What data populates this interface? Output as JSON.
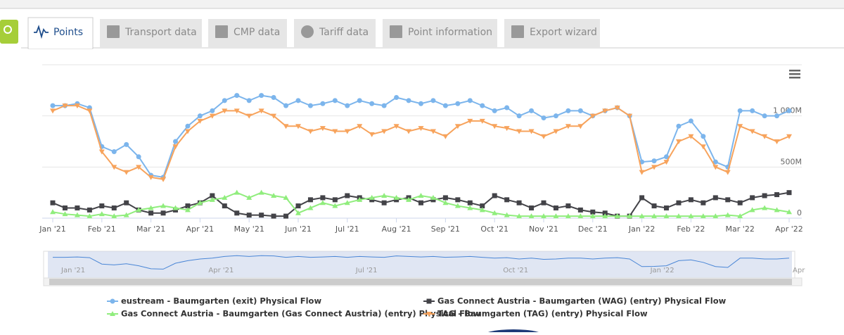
{
  "tabs": [
    "Points",
    "Transport data",
    "CMP data",
    "Tariff data",
    "Point information",
    "Export wizard"
  ],
  "navigator_labels": [
    "Jan '21",
    "Apr '21",
    "Jul '21",
    "Oct '21",
    "Jan '22",
    "Apr"
  ],
  "chart_data": {
    "type": "line",
    "categories": [
      "Jan '21",
      null,
      null,
      null,
      "Feb '21",
      null,
      null,
      null,
      "Mar '21",
      null,
      null,
      null,
      "Apr '21",
      null,
      null,
      null,
      "May '21",
      null,
      null,
      null,
      "Jun '21",
      null,
      null,
      null,
      "Jul '21",
      null,
      null,
      null,
      "Aug '21",
      null,
      null,
      null,
      "Sep '21",
      null,
      null,
      null,
      "Oct '21",
      null,
      null,
      null,
      "Nov '21",
      null,
      null,
      null,
      "Dec '21",
      null,
      null,
      null,
      "Jan '22",
      null,
      null,
      null,
      "Feb '22",
      null,
      null,
      null,
      "Mar '22",
      null,
      null,
      null,
      "Apr '22"
    ],
    "ylim": [
      0,
      1500000000.0
    ],
    "yticks": [
      0,
      {
        "value": 500000000.0,
        "label": "500M"
      },
      {
        "value": 1000000000.0,
        "label": "1 000M"
      }
    ],
    "grid": true,
    "legend": "bottom",
    "series": [
      {
        "name": "eustream - Baumgarten (exit) Physical Flow",
        "color": "#7cb5ec",
        "values": [
          1100000000.0,
          1100000000.0,
          1120000000.0,
          1080000000.0,
          700000000.0,
          650000000.0,
          720000000.0,
          600000000.0,
          420000000.0,
          400000000.0,
          750000000.0,
          900000000.0,
          1000000000.0,
          1050000000.0,
          1150000000.0,
          1200000000.0,
          1150000000.0,
          1200000000.0,
          1180000000.0,
          1100000000.0,
          1150000000.0,
          1100000000.0,
          1120000000.0,
          1150000000.0,
          1100000000.0,
          1150000000.0,
          1120000000.0,
          1100000000.0,
          1180000000.0,
          1150000000.0,
          1120000000.0,
          1150000000.0,
          1100000000.0,
          1120000000.0,
          1150000000.0,
          1100000000.0,
          1050000000.0,
          1080000000.0,
          1000000000.0,
          1050000000.0,
          980000000.0,
          1000000000.0,
          1050000000.0,
          1050000000.0,
          1000000000.0,
          1050000000.0,
          1080000000.0,
          1000000000.0,
          550000000.0,
          560000000.0,
          600000000.0,
          900000000.0,
          950000000.0,
          800000000.0,
          550000000.0,
          500000000.0,
          1050000000.0,
          1050000000.0,
          1000000000.0,
          1000000000.0,
          1050000000.0
        ]
      },
      {
        "name": "Gas Connect Austria - Baumgarten (WAG) (entry) Physical Flow",
        "color": "#434348",
        "values": [
          150000000.0,
          100000000.0,
          100000000.0,
          80000000.0,
          120000000.0,
          100000000.0,
          150000000.0,
          80000000.0,
          50000000.0,
          50000000.0,
          80000000.0,
          120000000.0,
          150000000.0,
          220000000.0,
          120000000.0,
          50000000.0,
          30000000.0,
          30000000.0,
          20000000.0,
          20000000.0,
          120000000.0,
          180000000.0,
          200000000.0,
          180000000.0,
          220000000.0,
          200000000.0,
          180000000.0,
          150000000.0,
          180000000.0,
          200000000.0,
          150000000.0,
          180000000.0,
          200000000.0,
          180000000.0,
          150000000.0,
          120000000.0,
          220000000.0,
          180000000.0,
          150000000.0,
          100000000.0,
          150000000.0,
          100000000.0,
          120000000.0,
          80000000.0,
          60000000.0,
          50000000.0,
          20000000.0,
          20000000.0,
          200000000.0,
          120000000.0,
          100000000.0,
          150000000.0,
          180000000.0,
          150000000.0,
          200000000.0,
          180000000.0,
          150000000.0,
          200000000.0,
          220000000.0,
          230000000.0,
          250000000.0
        ]
      },
      {
        "name": "Gas Connect Austria - Baumgarten (Gas Connect Austria) (entry) Physical Flow",
        "color": "#90ed7d",
        "values": [
          60000000.0,
          40000000.0,
          30000000.0,
          20000000.0,
          40000000.0,
          20000000.0,
          30000000.0,
          80000000.0,
          100000000.0,
          120000000.0,
          100000000.0,
          80000000.0,
          150000000.0,
          180000000.0,
          200000000.0,
          250000000.0,
          200000000.0,
          250000000.0,
          220000000.0,
          200000000.0,
          50000000.0,
          100000000.0,
          150000000.0,
          120000000.0,
          150000000.0,
          180000000.0,
          200000000.0,
          220000000.0,
          200000000.0,
          180000000.0,
          220000000.0,
          200000000.0,
          150000000.0,
          120000000.0,
          100000000.0,
          80000000.0,
          50000000.0,
          30000000.0,
          20000000.0,
          20000000.0,
          20000000.0,
          20000000.0,
          20000000.0,
          20000000.0,
          20000000.0,
          20000000.0,
          20000000.0,
          20000000.0,
          20000000.0,
          20000000.0,
          20000000.0,
          20000000.0,
          20000000.0,
          20000000.0,
          20000000.0,
          30000000.0,
          20000000.0,
          80000000.0,
          100000000.0,
          80000000.0,
          60000000.0
        ]
      },
      {
        "name": "TAG - Baumgarten (TAG) (entry) Physical Flow",
        "color": "#f7a35c",
        "values": [
          1050000000.0,
          1100000000.0,
          1100000000.0,
          1050000000.0,
          650000000.0,
          500000000.0,
          450000000.0,
          500000000.0,
          400000000.0,
          380000000.0,
          700000000.0,
          850000000.0,
          950000000.0,
          1000000000.0,
          1050000000.0,
          1050000000.0,
          1000000000.0,
          1050000000.0,
          1000000000.0,
          900000000.0,
          900000000.0,
          850000000.0,
          880000000.0,
          850000000.0,
          850000000.0,
          900000000.0,
          820000000.0,
          850000000.0,
          900000000.0,
          850000000.0,
          880000000.0,
          850000000.0,
          800000000.0,
          900000000.0,
          950000000.0,
          950000000.0,
          900000000.0,
          880000000.0,
          850000000.0,
          850000000.0,
          800000000.0,
          850000000.0,
          900000000.0,
          900000000.0,
          1000000000.0,
          1050000000.0,
          1080000000.0,
          1000000000.0,
          450000000.0,
          500000000.0,
          550000000.0,
          750000000.0,
          800000000.0,
          700000000.0,
          500000000.0,
          450000000.0,
          900000000.0,
          850000000.0,
          800000000.0,
          750000000.0,
          800000000.0
        ]
      }
    ]
  }
}
